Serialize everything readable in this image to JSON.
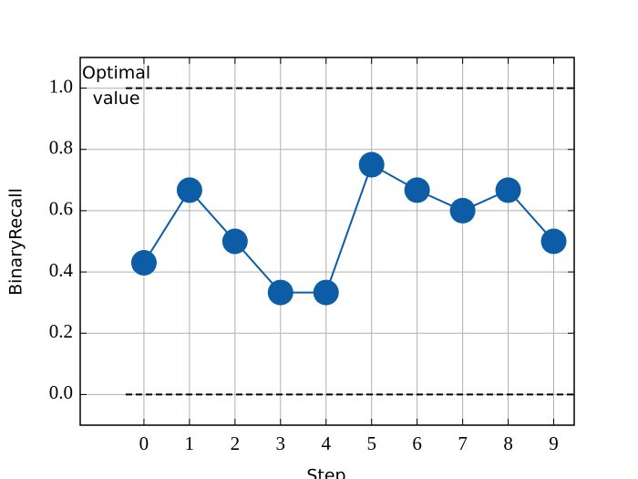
{
  "chart_data": {
    "type": "line",
    "x_label": "Step",
    "y_label": "BinaryRecall",
    "x": [
      0,
      1,
      2,
      3,
      4,
      5,
      6,
      7,
      8,
      9
    ],
    "series": [
      {
        "name": "BinaryRecall",
        "color": "#0c5da5",
        "values": [
          0.43,
          0.667,
          0.5,
          0.333,
          0.333,
          0.75,
          0.667,
          0.6,
          0.667,
          0.5
        ]
      }
    ],
    "xlim": [
      -1.4,
      9.45
    ],
    "ylim": [
      -0.1,
      1.1
    ],
    "xticks": [
      0,
      1,
      2,
      3,
      4,
      5,
      6,
      7,
      8,
      9
    ],
    "yticks": [
      {
        "value": 0,
        "label": "0.0"
      },
      {
        "value": 0.2,
        "label": "0.2"
      },
      {
        "value": 0.4,
        "label": "0.4"
      },
      {
        "value": 0.6,
        "label": "0.6"
      },
      {
        "value": 0.8,
        "label": "0.8"
      },
      {
        "value": 1,
        "label": "1.0"
      }
    ],
    "grid": true,
    "hlines": [
      {
        "y": 1.0,
        "xmin": -0.4
      },
      {
        "y": 0.0,
        "xmin": -0.4
      }
    ],
    "annotation": "Optimal\nvalue"
  }
}
